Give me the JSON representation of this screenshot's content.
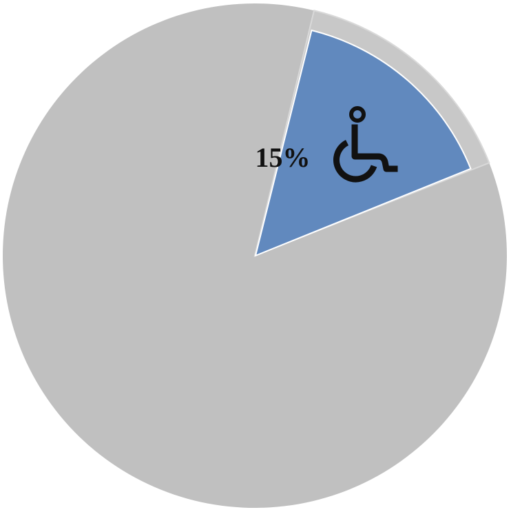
{
  "chart_data": {
    "type": "pie",
    "slices": [
      {
        "value": 15,
        "label": "15%",
        "icon": "wheelchair-icon",
        "color": "#6189be",
        "exploded": true
      },
      {
        "value": 85,
        "label": "",
        "color": "#c0c0c0",
        "exploded": false
      }
    ],
    "title": "",
    "legend": "none"
  }
}
